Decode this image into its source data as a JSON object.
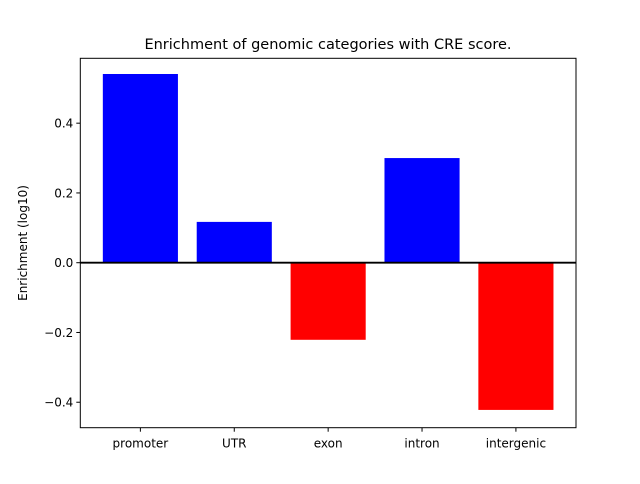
{
  "chart_data": {
    "type": "bar",
    "title": "Enrichment of genomic categories with CRE score.",
    "xlabel": "",
    "ylabel": "Enrichment (log10)",
    "categories": [
      "promoter",
      "UTR",
      "exon",
      "intron",
      "intergenic"
    ],
    "values": [
      0.541,
      0.117,
      -0.221,
      0.3,
      -0.422
    ],
    "bar_colors": [
      "#0000ff",
      "#0000ff",
      "#ff0000",
      "#0000ff",
      "#ff0000"
    ],
    "ylim": [
      -0.473,
      0.586
    ],
    "xlim": [
      -0.64,
      4.64
    ],
    "yticks": [
      -0.4,
      -0.2,
      0.0,
      0.2,
      0.4
    ],
    "ytick_labels": [
      "−0.4",
      "−0.2",
      "0.0",
      "0.2",
      "0.4"
    ],
    "zero_line": true,
    "grid": false,
    "legend": "none"
  }
}
